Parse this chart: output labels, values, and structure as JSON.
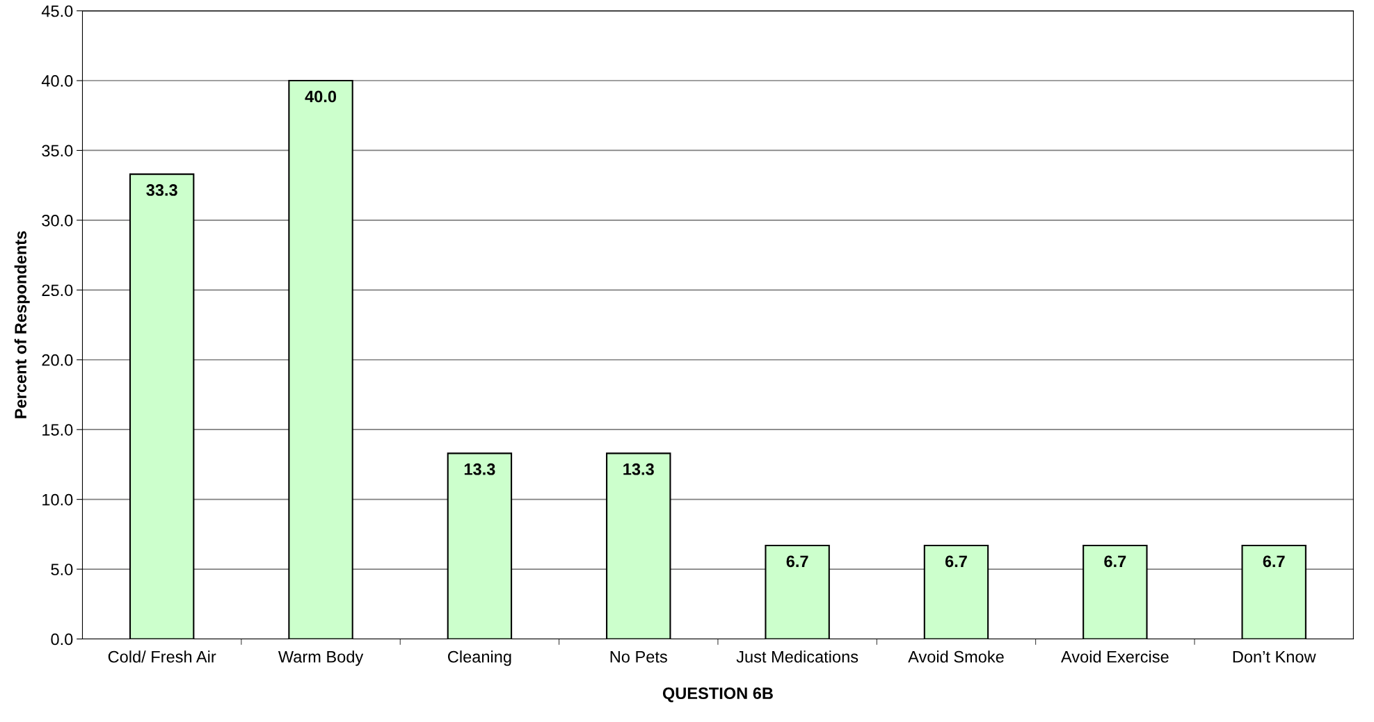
{
  "chart_data": {
    "type": "bar",
    "xlabel": "QUESTION 6B",
    "ylabel": "Percent of Respondents",
    "categories": [
      "Cold/ Fresh Air",
      "Warm Body",
      "Cleaning",
      "No Pets",
      "Just Medications",
      "Avoid Smoke",
      "Avoid Exercise",
      "Don’t Know"
    ],
    "values": [
      33.3,
      40.0,
      13.3,
      13.3,
      6.7,
      6.7,
      6.7,
      6.7
    ],
    "value_labels": [
      "33.3",
      "40.0",
      "13.3",
      "13.3",
      "6.7",
      "6.7",
      "6.7",
      "6.7"
    ],
    "color": "#ccffcc",
    "ylim": [
      0,
      45
    ],
    "yticks": [
      {
        "value": 0,
        "label": "0.0"
      },
      {
        "value": 5,
        "label": "5.0"
      },
      {
        "value": 10,
        "label": "10.0"
      },
      {
        "value": 15,
        "label": "15.0"
      },
      {
        "value": 20,
        "label": "20.0"
      },
      {
        "value": 25,
        "label": "25.0"
      },
      {
        "value": 30,
        "label": "30.0"
      },
      {
        "value": 35,
        "label": "35.0"
      },
      {
        "value": 40,
        "label": "40.0"
      },
      {
        "value": 45,
        "label": "45.0"
      }
    ],
    "grid": "y"
  }
}
